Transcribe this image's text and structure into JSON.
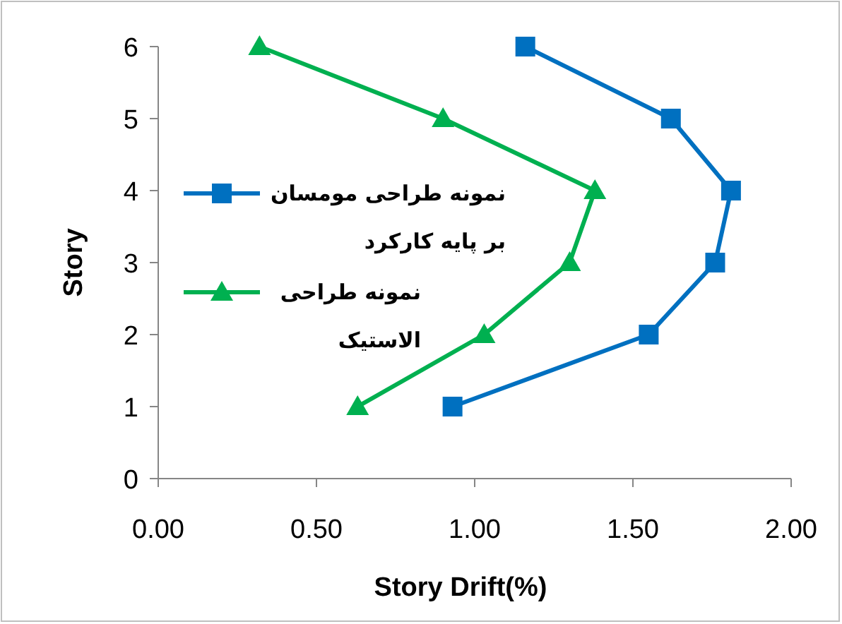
{
  "chart_data": {
    "type": "line",
    "xlabel": "Story Drift(%)",
    "ylabel": "Story",
    "xlim": [
      0,
      2
    ],
    "xticks": [
      {
        "value": 0,
        "label": "0.00"
      },
      {
        "value": 0.5,
        "label": "0.50"
      },
      {
        "value": 1,
        "label": "1.00"
      },
      {
        "value": 1.5,
        "label": "1.50"
      },
      {
        "value": 2,
        "label": "2.00"
      }
    ],
    "ylim": [
      0,
      6
    ],
    "yticks": [
      0,
      1,
      2,
      3,
      4,
      5,
      6
    ],
    "grid": false,
    "legend": "left",
    "line_style": "solid",
    "series": [
      {
        "name": "نمونه طراحی مومسان بر پایه کارکرد",
        "color": "#0070c0",
        "marker": "square",
        "x": [
          0.93,
          1.55,
          1.76,
          1.81,
          1.62,
          1.16
        ],
        "values": [
          1,
          2,
          3,
          4,
          5,
          6
        ]
      },
      {
        "name": "نمونه طراحی الاستیک",
        "color": "#00b050",
        "marker": "triangle",
        "x": [
          0.63,
          1.03,
          1.3,
          1.38,
          0.9,
          0.32
        ],
        "values": [
          1,
          2,
          3,
          4,
          5,
          6
        ]
      }
    ]
  }
}
